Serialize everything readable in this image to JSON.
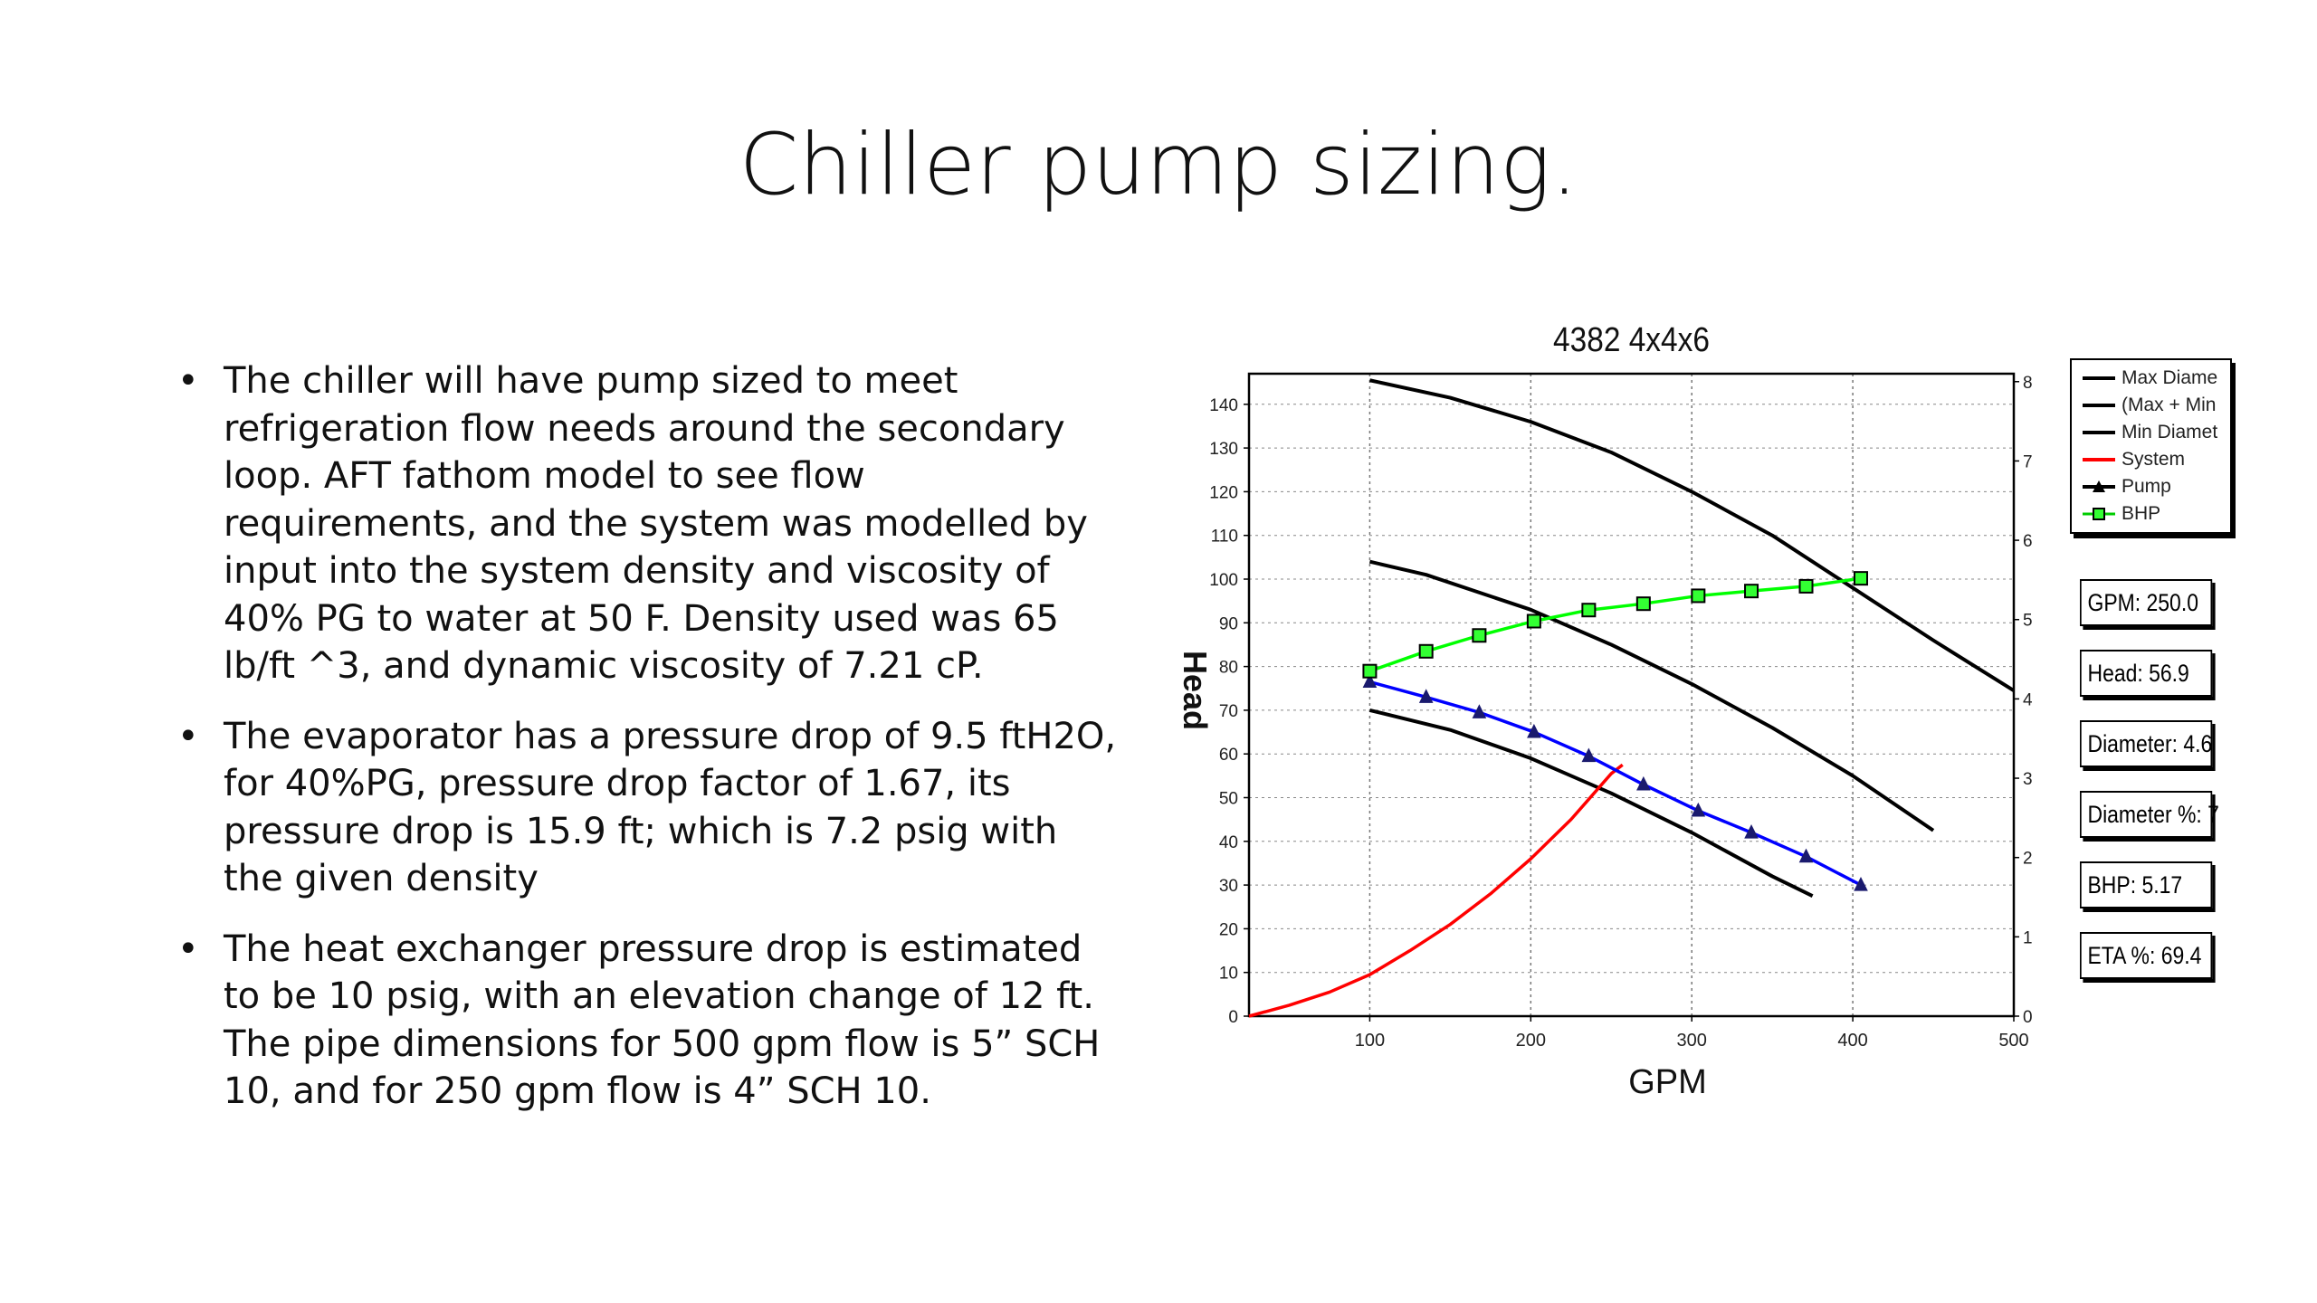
{
  "slide": {
    "title": "Chiller pump sizing.",
    "bullets": [
      "The chiller will have pump sized to meet refrigeration flow needs around the secondary loop. AFT fathom model to see flow requirements, and the system was modelled by input into the system density and viscosity of 40% PG to water at 50 F. Density used was 65 lb/ft ^3, and dynamic viscosity of 7.21 cP.",
      "The evaporator has a pressure drop of 9.5 ftH2O, for 40%PG, pressure drop factor of 1.67, its pressure drop is 15.9 ft; which is 7.2 psig with the given density",
      "The heat exchanger pressure drop is estimated to be 10 psig, with an elevation change of 12 ft. The pipe dimensions for 500 gpm flow is 5” SCH 10, and for 250 gpm flow is 4” SCH 10."
    ],
    "bullet_glyph": "•"
  },
  "readouts": [
    {
      "name": "gpm-readout",
      "text": "GPM: 250.0"
    },
    {
      "name": "head-readout",
      "text": "Head: 56.9"
    },
    {
      "name": "diameter-readout",
      "text": "Diameter: 4.6"
    },
    {
      "name": "diameter-percent-readout",
      "text": "Diameter %: 7"
    },
    {
      "name": "bhp-readout",
      "text": "BHP: 5.17"
    },
    {
      "name": "eta-readout",
      "text": "ETA %: 69.4"
    }
  ],
  "legend": [
    {
      "label": "Max Diame",
      "color": "#000000",
      "marker": "none"
    },
    {
      "label": "(Max + Min",
      "color": "#000000",
      "marker": "none"
    },
    {
      "label": "Min Diamet",
      "color": "#000000",
      "marker": "none"
    },
    {
      "label": "System",
      "color": "#ff0000",
      "marker": "none"
    },
    {
      "label": "Pump",
      "color": "#000000",
      "marker": "triangle"
    },
    {
      "label": "BHP",
      "color": "#00cc00",
      "marker": "square"
    }
  ],
  "chart_data": {
    "type": "line",
    "title": "4382 4x4x6",
    "xlabel": "GPM",
    "ylabel": "Head",
    "xlim": [
      25,
      500
    ],
    "ylim": [
      0,
      147
    ],
    "y2lim": [
      0,
      8.1
    ],
    "xticks": [
      100,
      200,
      300,
      400,
      500
    ],
    "yticks": [
      0,
      10,
      20,
      30,
      40,
      50,
      60,
      70,
      80,
      90,
      100,
      110,
      120,
      130,
      140
    ],
    "y2ticks": [
      0,
      1,
      2,
      3,
      4,
      5,
      6,
      7,
      8
    ],
    "grid": true,
    "series": [
      {
        "name": "Max Diame",
        "color": "#000000",
        "axis": "left",
        "marker": "none",
        "x": [
          100,
          150,
          200,
          250,
          300,
          350,
          400,
          450,
          500
        ],
        "y": [
          145.5,
          141.5,
          136,
          129,
          120,
          110,
          98,
          86,
          74.5
        ]
      },
      {
        "name": "(Max + Min",
        "color": "#000000",
        "axis": "left",
        "marker": "none",
        "x": [
          100,
          135,
          200,
          250,
          300,
          350,
          400,
          450
        ],
        "y": [
          104,
          101,
          93,
          85,
          76,
          66,
          55,
          42.5
        ]
      },
      {
        "name": "Min Diamet",
        "color": "#000000",
        "axis": "left",
        "marker": "none",
        "x": [
          100,
          150,
          200,
          250,
          300,
          350,
          375
        ],
        "y": [
          70,
          65.5,
          59,
          51,
          42,
          32,
          27.5
        ]
      },
      {
        "name": "System",
        "color": "#ff0000",
        "axis": "left",
        "marker": "none",
        "x": [
          25,
          50,
          75,
          100,
          125,
          150,
          175,
          200,
          225,
          250,
          257
        ],
        "y": [
          0,
          2.5,
          5.5,
          9.5,
          15,
          21,
          28,
          36,
          45,
          55.5,
          57.5
        ]
      },
      {
        "name": "Pump",
        "color": "#0000ff",
        "axis": "left",
        "marker": "triangle",
        "x": [
          100,
          135,
          168,
          202,
          236,
          270,
          304,
          337,
          371,
          405
        ],
        "y": [
          76.5,
          73,
          69.5,
          65,
          59.5,
          53,
          47,
          42,
          36.5,
          30
        ]
      },
      {
        "name": "BHP",
        "color": "#00ff00",
        "axis": "right",
        "marker": "square",
        "x": [
          100,
          135,
          168,
          202,
          236,
          270,
          304,
          337,
          371,
          405
        ],
        "y": [
          4.35,
          4.6,
          4.8,
          4.98,
          5.12,
          5.2,
          5.3,
          5.36,
          5.42,
          5.52
        ]
      }
    ]
  }
}
